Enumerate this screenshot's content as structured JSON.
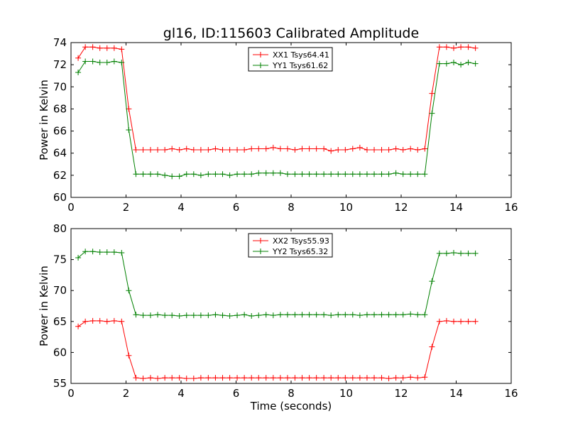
{
  "figure": {
    "title": "gl16, ID:115603 Calibrated Amplitude",
    "xlabel": "Time (seconds)"
  },
  "chart_data": [
    {
      "type": "line",
      "title": "gl16, ID:115603 Calibrated Amplitude",
      "xlabel": "",
      "ylabel": "Power in Kelvin",
      "xlim": [
        0,
        16
      ],
      "ylim": [
        60,
        74
      ],
      "xticks": [
        0,
        2,
        4,
        6,
        8,
        10,
        12,
        14,
        16
      ],
      "yticks": [
        60,
        62,
        64,
        66,
        68,
        70,
        72,
        74
      ],
      "grid": false,
      "legend_position": "top-center",
      "x": [
        0.26,
        0.52,
        0.79,
        1.05,
        1.31,
        1.57,
        1.84,
        2.1,
        2.36,
        2.62,
        2.89,
        3.15,
        3.41,
        3.67,
        3.94,
        4.2,
        4.46,
        4.72,
        4.99,
        5.25,
        5.51,
        5.77,
        6.04,
        6.3,
        6.56,
        6.82,
        7.09,
        7.35,
        7.61,
        7.87,
        8.14,
        8.4,
        8.66,
        8.92,
        9.19,
        9.45,
        9.71,
        9.97,
        10.24,
        10.5,
        10.76,
        11.02,
        11.29,
        11.55,
        11.81,
        12.07,
        12.34,
        12.6,
        12.86,
        13.12,
        13.39,
        13.65,
        13.91,
        14.17,
        14.44,
        14.7
      ],
      "series": [
        {
          "name": "XX1 Tsys64.41",
          "color": "#ff0000",
          "values": [
            72.6,
            73.6,
            73.6,
            73.5,
            73.5,
            73.5,
            73.4,
            68.0,
            64.3,
            64.3,
            64.3,
            64.3,
            64.3,
            64.4,
            64.3,
            64.4,
            64.3,
            64.3,
            64.3,
            64.4,
            64.3,
            64.3,
            64.3,
            64.3,
            64.4,
            64.4,
            64.4,
            64.5,
            64.4,
            64.4,
            64.3,
            64.4,
            64.4,
            64.4,
            64.4,
            64.2,
            64.3,
            64.3,
            64.4,
            64.5,
            64.3,
            64.3,
            64.3,
            64.3,
            64.4,
            64.3,
            64.4,
            64.3,
            64.4,
            69.4,
            73.6,
            73.6,
            73.5,
            73.6,
            73.6,
            73.5
          ]
        },
        {
          "name": "YY1 Tsys61.62",
          "color": "#008000",
          "values": [
            71.3,
            72.3,
            72.3,
            72.2,
            72.2,
            72.3,
            72.2,
            66.1,
            62.1,
            62.1,
            62.1,
            62.1,
            62.0,
            61.9,
            61.9,
            62.1,
            62.1,
            62.0,
            62.1,
            62.1,
            62.1,
            62.0,
            62.1,
            62.1,
            62.1,
            62.2,
            62.2,
            62.2,
            62.2,
            62.1,
            62.1,
            62.1,
            62.1,
            62.1,
            62.1,
            62.1,
            62.1,
            62.1,
            62.1,
            62.1,
            62.1,
            62.1,
            62.1,
            62.1,
            62.2,
            62.1,
            62.1,
            62.1,
            62.1,
            67.6,
            72.1,
            72.1,
            72.2,
            72.0,
            72.2,
            72.1
          ]
        }
      ]
    },
    {
      "type": "line",
      "title": "",
      "xlabel": "Time (seconds)",
      "ylabel": "Power in Kelvin",
      "xlim": [
        0,
        16
      ],
      "ylim": [
        55,
        80
      ],
      "xticks": [
        0,
        2,
        4,
        6,
        8,
        10,
        12,
        14,
        16
      ],
      "yticks": [
        55,
        60,
        65,
        70,
        75,
        80
      ],
      "grid": false,
      "legend_position": "top-center",
      "x": [
        0.26,
        0.52,
        0.79,
        1.05,
        1.31,
        1.57,
        1.84,
        2.1,
        2.36,
        2.62,
        2.89,
        3.15,
        3.41,
        3.67,
        3.94,
        4.2,
        4.46,
        4.72,
        4.99,
        5.25,
        5.51,
        5.77,
        6.04,
        6.3,
        6.56,
        6.82,
        7.09,
        7.35,
        7.61,
        7.87,
        8.14,
        8.4,
        8.66,
        8.92,
        9.19,
        9.45,
        9.71,
        9.97,
        10.24,
        10.5,
        10.76,
        11.02,
        11.29,
        11.55,
        11.81,
        12.07,
        12.34,
        12.6,
        12.86,
        13.12,
        13.39,
        13.65,
        13.91,
        14.17,
        14.44,
        14.7
      ],
      "series": [
        {
          "name": "XX2 Tsys55.93",
          "color": "#ff0000",
          "values": [
            64.2,
            65.0,
            65.1,
            65.1,
            65.0,
            65.1,
            65.0,
            59.5,
            55.9,
            55.8,
            55.9,
            55.8,
            55.9,
            55.9,
            55.9,
            55.8,
            55.8,
            55.9,
            55.9,
            55.9,
            55.9,
            55.9,
            55.9,
            55.9,
            55.9,
            55.9,
            55.9,
            55.9,
            55.9,
            55.9,
            55.9,
            55.9,
            55.9,
            55.9,
            55.9,
            55.9,
            55.9,
            55.9,
            55.9,
            55.9,
            55.9,
            55.9,
            55.9,
            55.8,
            55.9,
            55.9,
            56.0,
            55.9,
            56.0,
            60.9,
            65.0,
            65.1,
            65.0,
            65.0,
            65.0,
            65.0
          ]
        },
        {
          "name": "YY2 Tsys65.32",
          "color": "#008000",
          "values": [
            75.3,
            76.3,
            76.3,
            76.2,
            76.2,
            76.2,
            76.1,
            70.0,
            66.1,
            66.0,
            66.0,
            66.1,
            66.0,
            66.0,
            65.9,
            66.0,
            66.0,
            66.0,
            66.0,
            66.1,
            66.0,
            65.9,
            66.0,
            66.1,
            65.9,
            66.0,
            66.1,
            66.0,
            66.1,
            66.1,
            66.1,
            66.1,
            66.1,
            66.1,
            66.1,
            66.0,
            66.1,
            66.1,
            66.1,
            66.0,
            66.1,
            66.1,
            66.1,
            66.1,
            66.1,
            66.1,
            66.2,
            66.1,
            66.1,
            71.5,
            76.0,
            76.0,
            76.1,
            76.0,
            76.0,
            76.0
          ]
        }
      ]
    }
  ]
}
